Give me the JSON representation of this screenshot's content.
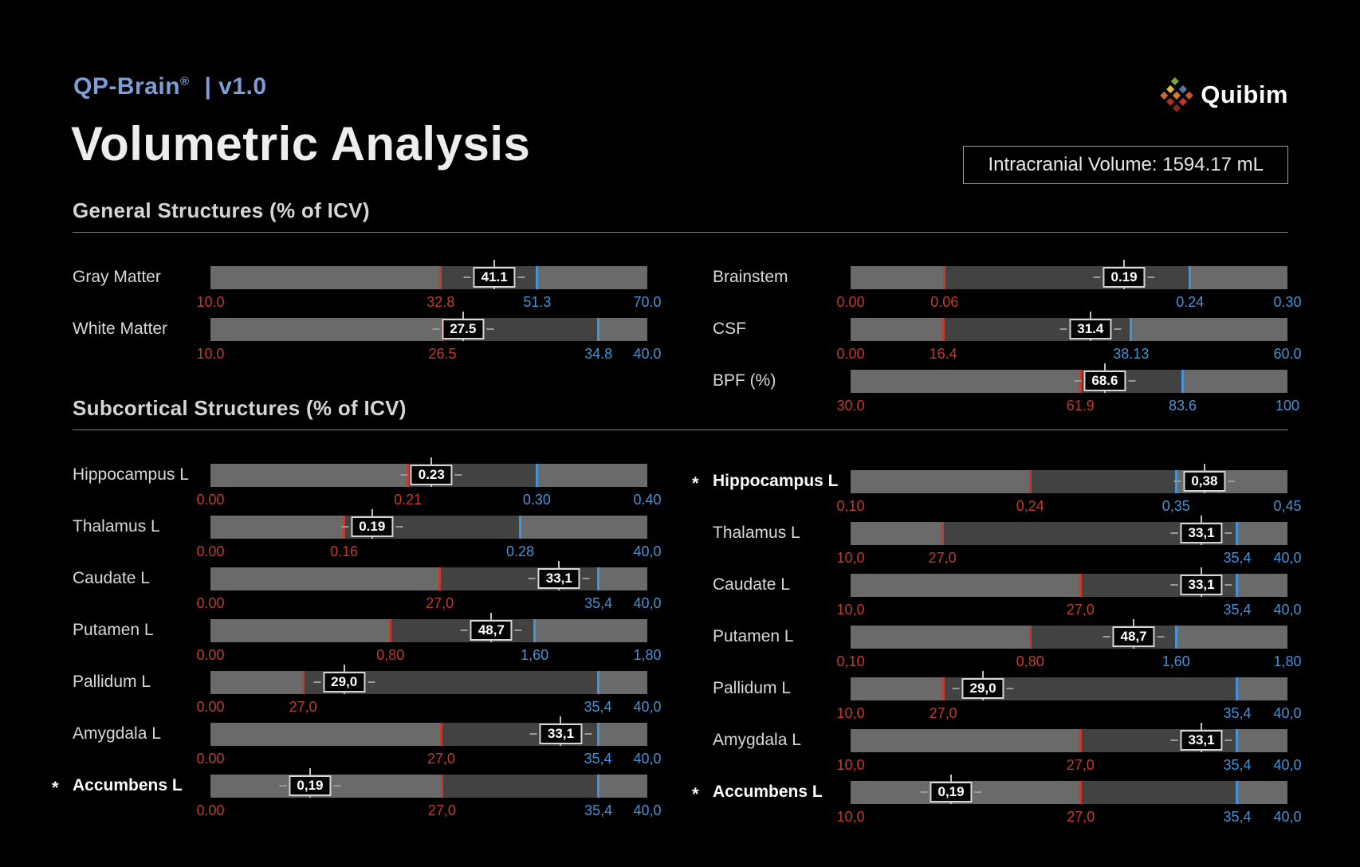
{
  "header": {
    "brand": "QP-Brain",
    "brand_reg": "®",
    "brand_version": "| v1.0",
    "title": "Volumetric Analysis",
    "icv_text": "Intracranial Volume: 1594.17 mL",
    "logo_text": "Quibim",
    "logo_icon": "quibim-diamond-mosaic-icon",
    "logo_colors": [
      "#7ca33d",
      "#55789e",
      "#c8552e",
      "#e3b94a",
      "#d97a2e",
      "#c03a2b",
      "#cc6c2f",
      "#aa3326",
      "#832a1f"
    ]
  },
  "colors": {
    "background": "#000000",
    "accent_blue": "#7d9ed6",
    "red": "#c23b2c",
    "blue": "#4593d4",
    "bar_light": "#6a6a6a",
    "bar_dark": "#424242"
  },
  "chart_data": {
    "type": "bar",
    "subtype": "range-indicator-bars",
    "title": "Volumetric Analysis",
    "legend": "red ticks = lower normal limits, blue ticks = upper normal limits, boxed value = measured result, * = out-of-range flag",
    "sections": [
      {
        "heading": "General Structures (% of ICV)",
        "columns": [
          {
            "rows": [
              {
                "label": "Gray Matter",
                "flagged": false,
                "value": "41.1",
                "value_pos": 65.0,
                "low_pos": 52.7,
                "high_pos": 74.8,
                "ticks": [
                  {
                    "label": "10.0",
                    "pos": 0,
                    "color": "red"
                  },
                  {
                    "label": "32.8",
                    "pos": 52.7,
                    "color": "red"
                  },
                  {
                    "label": "51.3",
                    "pos": 74.8,
                    "color": "blue"
                  },
                  {
                    "label": "70.0",
                    "pos": 100,
                    "color": "blue"
                  }
                ]
              },
              {
                "label": "White Matter",
                "flagged": false,
                "value": "27.5",
                "value_pos": 57.8,
                "low_pos": 53.1,
                "high_pos": 88.8,
                "ticks": [
                  {
                    "label": "10.0",
                    "pos": 0,
                    "color": "red"
                  },
                  {
                    "label": "26.5",
                    "pos": 53.1,
                    "color": "red"
                  },
                  {
                    "label": "34.8",
                    "pos": 88.8,
                    "color": "blue"
                  },
                  {
                    "label": "40.0",
                    "pos": 100,
                    "color": "blue"
                  }
                ]
              }
            ]
          },
          {
            "rows": [
              {
                "label": "Brainstem",
                "flagged": false,
                "value": "0.19",
                "value_pos": 62.6,
                "low_pos": 21.5,
                "high_pos": 77.7,
                "ticks": [
                  {
                    "label": "0.00",
                    "pos": 0,
                    "color": "red"
                  },
                  {
                    "label": "0.06",
                    "pos": 21.5,
                    "color": "red"
                  },
                  {
                    "label": "0.24",
                    "pos": 77.7,
                    "color": "blue"
                  },
                  {
                    "label": "0.30",
                    "pos": 100,
                    "color": "blue"
                  }
                ]
              },
              {
                "label": "CSF",
                "flagged": false,
                "value": "31.4",
                "value_pos": 54.9,
                "low_pos": 21.2,
                "high_pos": 64.2,
                "ticks": [
                  {
                    "label": "0.00",
                    "pos": 0,
                    "color": "red"
                  },
                  {
                    "label": "16.4",
                    "pos": 21.2,
                    "color": "red"
                  },
                  {
                    "label": "38.13",
                    "pos": 64.2,
                    "color": "blue"
                  },
                  {
                    "label": "60.0",
                    "pos": 100,
                    "color": "blue"
                  }
                ]
              },
              {
                "label": "BPF (%)",
                "flagged": false,
                "value": "68.6",
                "value_pos": 58.2,
                "low_pos": 52.6,
                "high_pos": 76.0,
                "ticks": [
                  {
                    "label": "30.0",
                    "pos": 0,
                    "color": "red"
                  },
                  {
                    "label": "61.9",
                    "pos": 52.6,
                    "color": "red"
                  },
                  {
                    "label": "83.6",
                    "pos": 76.0,
                    "color": "blue"
                  },
                  {
                    "label": "100",
                    "pos": 100,
                    "color": "blue"
                  }
                ]
              }
            ]
          }
        ]
      },
      {
        "heading": "Subcortical Structures (% of ICV)",
        "columns": [
          {
            "rows": [
              {
                "label": "Hippocampus L",
                "flagged": false,
                "value": "0.23",
                "value_pos": 50.6,
                "low_pos": 45.2,
                "high_pos": 74.7,
                "ticks": [
                  {
                    "label": "0.00",
                    "pos": 0,
                    "color": "red"
                  },
                  {
                    "label": "0.21",
                    "pos": 45.2,
                    "color": "red"
                  },
                  {
                    "label": "0.30",
                    "pos": 74.7,
                    "color": "blue"
                  },
                  {
                    "label": "0.40",
                    "pos": 100,
                    "color": "blue"
                  }
                ]
              },
              {
                "label": "Thalamus L",
                "flagged": false,
                "value": "0.19",
                "value_pos": 37.0,
                "low_pos": 30.6,
                "high_pos": 70.9,
                "ticks": [
                  {
                    "label": "0.00",
                    "pos": 0,
                    "color": "red"
                  },
                  {
                    "label": "0.16",
                    "pos": 30.6,
                    "color": "red"
                  },
                  {
                    "label": "0.28",
                    "pos": 70.9,
                    "color": "blue"
                  },
                  {
                    "label": "40,0",
                    "pos": 100,
                    "color": "blue"
                  }
                ]
              },
              {
                "label": "Caudate L",
                "flagged": false,
                "value": "33,1",
                "value_pos": 79.8,
                "low_pos": 52.5,
                "high_pos": 88.8,
                "ticks": [
                  {
                    "label": "0.00",
                    "pos": 0,
                    "color": "red"
                  },
                  {
                    "label": "27,0",
                    "pos": 52.5,
                    "color": "red"
                  },
                  {
                    "label": "35,4",
                    "pos": 88.8,
                    "color": "blue"
                  },
                  {
                    "label": "40,0",
                    "pos": 100,
                    "color": "blue"
                  }
                ]
              },
              {
                "label": "Putamen L",
                "flagged": false,
                "value": "48,7",
                "value_pos": 64.3,
                "low_pos": 41.2,
                "high_pos": 74.2,
                "ticks": [
                  {
                    "label": "0.00",
                    "pos": 0,
                    "color": "red"
                  },
                  {
                    "label": "0,80",
                    "pos": 41.2,
                    "color": "red"
                  },
                  {
                    "label": "1,60",
                    "pos": 74.2,
                    "color": "blue"
                  },
                  {
                    "label": "1,80",
                    "pos": 100,
                    "color": "blue"
                  }
                ]
              },
              {
                "label": "Pallidum L",
                "flagged": false,
                "value": "29,0",
                "value_pos": 30.6,
                "low_pos": 21.2,
                "high_pos": 88.7,
                "ticks": [
                  {
                    "label": "0.00",
                    "pos": 0,
                    "color": "red"
                  },
                  {
                    "label": "27,0",
                    "pos": 21.2,
                    "color": "red"
                  },
                  {
                    "label": "35,4",
                    "pos": 88.7,
                    "color": "blue"
                  },
                  {
                    "label": "40,0",
                    "pos": 100,
                    "color": "blue"
                  }
                ]
              },
              {
                "label": "Amygdala L",
                "flagged": false,
                "value": "33,1",
                "value_pos": 80.2,
                "low_pos": 52.8,
                "high_pos": 88.7,
                "ticks": [
                  {
                    "label": "0.00",
                    "pos": 0,
                    "color": "red"
                  },
                  {
                    "label": "27,0",
                    "pos": 52.8,
                    "color": "red"
                  },
                  {
                    "label": "35,4",
                    "pos": 88.7,
                    "color": "blue"
                  },
                  {
                    "label": "40,0",
                    "pos": 100,
                    "color": "blue"
                  }
                ]
              },
              {
                "label": "Accumbens L",
                "flagged": true,
                "value": "0,19",
                "value_pos": 22.8,
                "low_pos": 53.0,
                "high_pos": 88.8,
                "ticks": [
                  {
                    "label": "0.00",
                    "pos": 0,
                    "color": "red"
                  },
                  {
                    "label": "27,0",
                    "pos": 53.0,
                    "color": "red"
                  },
                  {
                    "label": "35,4",
                    "pos": 88.8,
                    "color": "blue"
                  },
                  {
                    "label": "40,0",
                    "pos": 100,
                    "color": "blue"
                  }
                ]
              }
            ]
          },
          {
            "rows": [
              {
                "label": "Hippocampus L",
                "flagged": true,
                "value": "0,38",
                "value_pos": 81.0,
                "low_pos": 41.1,
                "high_pos": 74.5,
                "ticks": [
                  {
                    "label": "0,10",
                    "pos": 0,
                    "color": "red"
                  },
                  {
                    "label": "0,24",
                    "pos": 41.1,
                    "color": "red"
                  },
                  {
                    "label": "0,35",
                    "pos": 74.5,
                    "color": "blue"
                  },
                  {
                    "label": "0,45",
                    "pos": 100,
                    "color": "blue"
                  }
                ]
              },
              {
                "label": "Thalamus L",
                "flagged": false,
                "value": "33,1",
                "value_pos": 80.3,
                "low_pos": 21.0,
                "high_pos": 88.5,
                "ticks": [
                  {
                    "label": "10,0",
                    "pos": 0,
                    "color": "red"
                  },
                  {
                    "label": "27,0",
                    "pos": 21.0,
                    "color": "red"
                  },
                  {
                    "label": "35,4",
                    "pos": 88.5,
                    "color": "blue"
                  },
                  {
                    "label": "40,0",
                    "pos": 100,
                    "color": "blue"
                  }
                ]
              },
              {
                "label": "Caudate L",
                "flagged": false,
                "value": "33,1",
                "value_pos": 80.3,
                "low_pos": 52.6,
                "high_pos": 88.5,
                "ticks": [
                  {
                    "label": "10,0",
                    "pos": 0,
                    "color": "red"
                  },
                  {
                    "label": "27,0",
                    "pos": 52.6,
                    "color": "red"
                  },
                  {
                    "label": "35,4",
                    "pos": 88.5,
                    "color": "blue"
                  },
                  {
                    "label": "40,0",
                    "pos": 100,
                    "color": "blue"
                  }
                ]
              },
              {
                "label": "Putamen L",
                "flagged": false,
                "value": "48,7",
                "value_pos": 64.8,
                "low_pos": 41.1,
                "high_pos": 74.5,
                "ticks": [
                  {
                    "label": "0,10",
                    "pos": 0,
                    "color": "red"
                  },
                  {
                    "label": "0,80",
                    "pos": 41.1,
                    "color": "red"
                  },
                  {
                    "label": "1,60",
                    "pos": 74.5,
                    "color": "blue"
                  },
                  {
                    "label": "1,80",
                    "pos": 100,
                    "color": "blue"
                  }
                ]
              },
              {
                "label": "Pallidum L",
                "flagged": false,
                "value": "29,0",
                "value_pos": 30.3,
                "low_pos": 21.2,
                "high_pos": 88.5,
                "ticks": [
                  {
                    "label": "10,0",
                    "pos": 0,
                    "color": "red"
                  },
                  {
                    "label": "27,0",
                    "pos": 21.2,
                    "color": "red"
                  },
                  {
                    "label": "35,4",
                    "pos": 88.5,
                    "color": "blue"
                  },
                  {
                    "label": "40,0",
                    "pos": 100,
                    "color": "blue"
                  }
                ]
              },
              {
                "label": "Amygdala L",
                "flagged": false,
                "value": "33,1",
                "value_pos": 80.3,
                "low_pos": 52.6,
                "high_pos": 88.5,
                "ticks": [
                  {
                    "label": "10,0",
                    "pos": 0,
                    "color": "red"
                  },
                  {
                    "label": "27,0",
                    "pos": 52.6,
                    "color": "red"
                  },
                  {
                    "label": "35,4",
                    "pos": 88.5,
                    "color": "blue"
                  },
                  {
                    "label": "40,0",
                    "pos": 100,
                    "color": "blue"
                  }
                ]
              },
              {
                "label": "Accumbens L",
                "flagged": true,
                "value": "0,19",
                "value_pos": 23.0,
                "low_pos": 52.7,
                "high_pos": 88.5,
                "ticks": [
                  {
                    "label": "10,0",
                    "pos": 0,
                    "color": "red"
                  },
                  {
                    "label": "27,0",
                    "pos": 52.7,
                    "color": "red"
                  },
                  {
                    "label": "35,4",
                    "pos": 88.5,
                    "color": "blue"
                  },
                  {
                    "label": "40,0",
                    "pos": 100,
                    "color": "blue"
                  }
                ]
              }
            ]
          }
        ]
      }
    ]
  }
}
